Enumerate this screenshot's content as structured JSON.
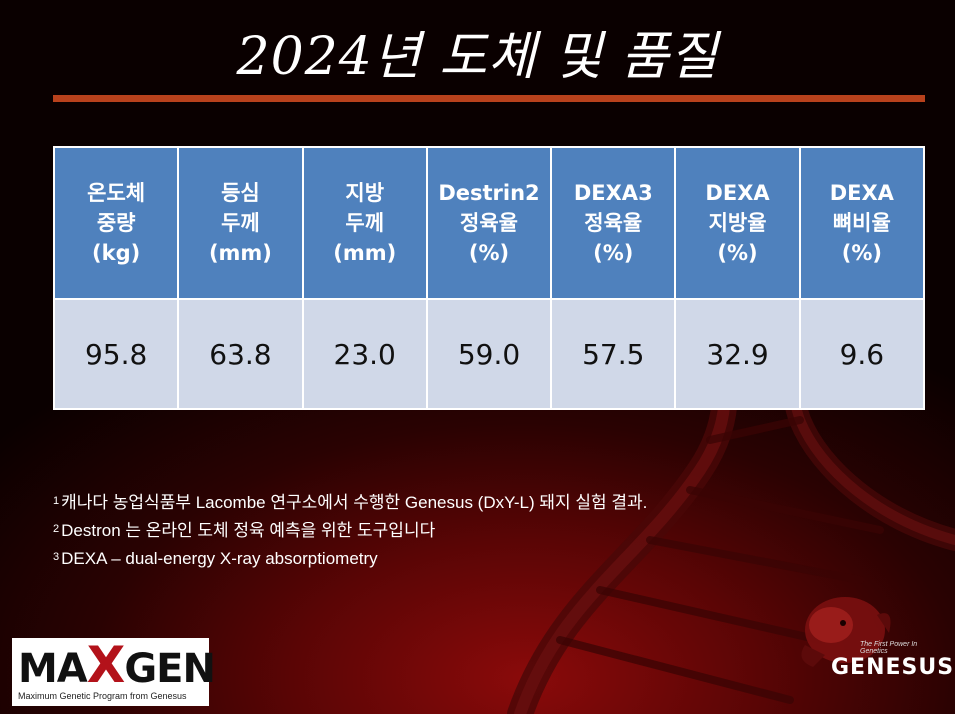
{
  "slide": {
    "title": "2024년 도체 및 품질",
    "table": {
      "headers": [
        "온도체\n중량\n(kg)",
        "등심\n두께\n(mm)",
        "지방\n두께\n(mm)",
        "Destrin2\n정육율\n(%)",
        "DEXA3\n정육율\n(%)",
        "DEXA\n지방율\n(%)",
        "DEXA\n뼈비율\n(%)"
      ],
      "values": [
        "95.8",
        "63.8",
        "23.0",
        "59.0",
        "57.5",
        "32.9",
        "9.6"
      ]
    },
    "footnotes": [
      {
        "mark": "1",
        "text": "캐나다 농업식품부 Lacombe 연구소에서 수행한 Genesus (DxY-L) 돼지 실험 결과."
      },
      {
        "mark": "2",
        "text": "Destron 는 온라인 도체 정육 예측을 위한 도구입니다"
      },
      {
        "mark": "3",
        "text": "DEXA – dual-energy X-ray absorptiometry"
      }
    ],
    "logos": {
      "maxgen_left": "MA",
      "maxgen_x": "X",
      "maxgen_right": "GEN",
      "maxgen_tagline": "Maximum Genetic Program from Genesus",
      "genesus_word": "GENESUS",
      "genesus_slogan": "The First Power In Genetics"
    }
  },
  "colors": {
    "header_bg": "#4f81bd",
    "cell_bg": "#d0d8e8",
    "rule": "#b8411c",
    "background_red": "#8a0a0a"
  }
}
